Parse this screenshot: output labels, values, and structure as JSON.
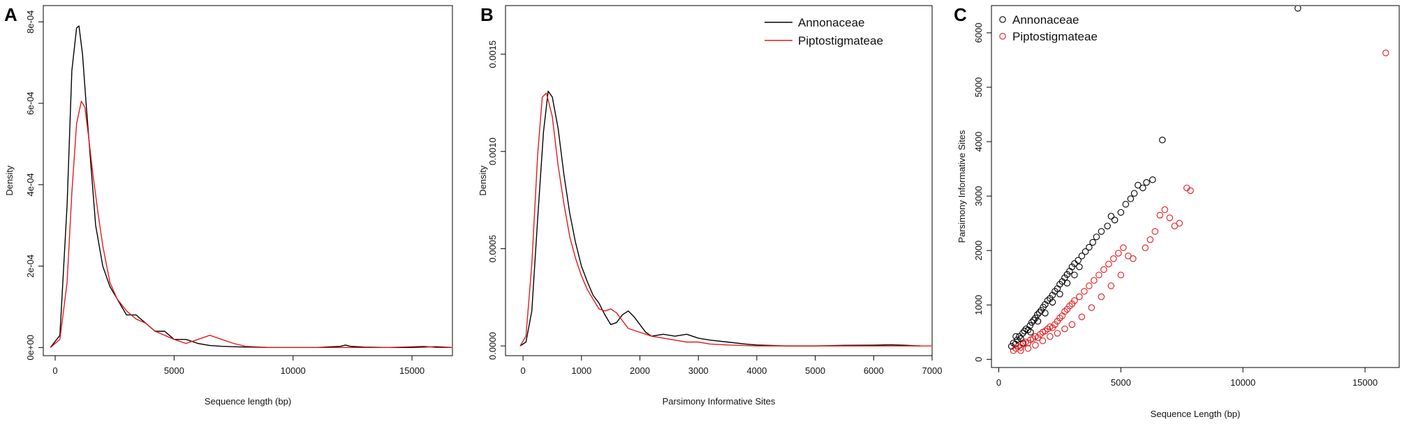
{
  "chart_data": [
    {
      "panel": "A",
      "type": "line",
      "xlabel": "Sequence length (bp)",
      "ylabel": "Density",
      "xlim": [
        -500,
        16700
      ],
      "ylim": [
        -2e-05,
        0.00084
      ],
      "x_ticks": [
        0,
        5000,
        10000,
        15000
      ],
      "y_ticks": [
        0,
        0.0002,
        0.0004,
        0.0006,
        0.0008
      ],
      "y_tick_labels": [
        "0e+00",
        "2e-04",
        "4e-04",
        "6e-04",
        "8e-04"
      ],
      "series": [
        {
          "color": "#000000",
          "x": [
            -200,
            200,
            500,
            700,
            900,
            1000,
            1150,
            1300,
            1500,
            1700,
            2000,
            2300,
            2600,
            3000,
            3400,
            3800,
            4200,
            4600,
            5000,
            5500,
            6000,
            6500,
            7000,
            7500,
            8000,
            9000,
            10000,
            11000,
            12000,
            12200,
            12400,
            13000,
            14000,
            15000,
            16000,
            16700
          ],
          "y": [
            0.0,
            3e-05,
            0.00035,
            0.00068,
            0.000785,
            0.00079,
            0.00072,
            0.0006,
            0.00045,
            0.0003,
            0.0002,
            0.00015,
            0.00012,
            8e-05,
            8e-05,
            6e-05,
            4e-05,
            4e-05,
            2e-05,
            2e-05,
            1e-05,
            5e-06,
            3e-06,
            2e-06,
            1e-06,
            0.0,
            0.0,
            0.0,
            3e-06,
            6e-06,
            3e-06,
            1e-06,
            0.0,
            0.0,
            2e-06,
            0.0
          ]
        },
        {
          "color": "#e31a1c",
          "x": [
            -200,
            200,
            500,
            700,
            900,
            1100,
            1250,
            1400,
            1600,
            1800,
            2000,
            2300,
            2600,
            3000,
            3400,
            3800,
            4200,
            4600,
            5000,
            5500,
            6000,
            6500,
            7000,
            7500,
            8000,
            9000,
            10000,
            12000,
            14000,
            15500,
            16000,
            16700
          ],
          "y": [
            0.0,
            2e-05,
            0.00016,
            0.00038,
            0.00055,
            0.000605,
            0.00059,
            0.00052,
            0.00042,
            0.00033,
            0.00025,
            0.00016,
            0.00012,
            9e-05,
            7e-05,
            6e-05,
            4e-05,
            3e-05,
            2e-05,
            1e-05,
            2e-05,
            3e-05,
            2e-05,
            1e-05,
            3e-06,
            0.0,
            0.0,
            0.0,
            0.0,
            3e-06,
            0.0,
            0.0
          ]
        }
      ]
    },
    {
      "panel": "B",
      "type": "line",
      "xlabel": "Parsimony Informative Sites",
      "ylabel": "Density",
      "xlim": [
        -300,
        7000
      ],
      "ylim": [
        -5e-05,
        0.00175
      ],
      "x_ticks": [
        0,
        1000,
        2000,
        3000,
        4000,
        5000,
        6000,
        7000
      ],
      "y_ticks": [
        0,
        0.0005,
        0.001,
        0.0015
      ],
      "y_tick_labels": [
        "0.0000",
        "0.0005",
        "0.0010",
        "0.0015"
      ],
      "legend": {
        "position": "top-right",
        "entries": [
          {
            "label": "Annonaceae",
            "color": "#000000"
          },
          {
            "label": "Piptostigmateae",
            "color": "#e31a1c"
          }
        ]
      },
      "series": [
        {
          "name": "Annonaceae",
          "color": "#000000",
          "x": [
            -50,
            50,
            150,
            250,
            350,
            430,
            500,
            600,
            700,
            800,
            900,
            1000,
            1100,
            1200,
            1300,
            1400,
            1500,
            1600,
            1700,
            1800,
            1900,
            2000,
            2100,
            2200,
            2400,
            2600,
            2800,
            3000,
            3200,
            3500,
            3800,
            4000,
            4500,
            5000,
            5500,
            6000,
            6300,
            6500,
            6800
          ],
          "y": [
            0.0,
            2e-05,
            0.00018,
            0.00065,
            0.0011,
            0.00131,
            0.00128,
            0.00112,
            0.00088,
            0.00068,
            0.00053,
            0.00041,
            0.00033,
            0.00026,
            0.00022,
            0.00016,
            0.00011,
            0.00012,
            0.00016,
            0.00018,
            0.00015,
            0.00011,
            7e-05,
            5e-05,
            6e-05,
            5e-05,
            6e-05,
            4e-05,
            3e-05,
            2e-05,
            1e-05,
            5e-06,
            0.0,
            0.0,
            3e-06,
            4e-06,
            6e-06,
            4e-06,
            0.0
          ]
        },
        {
          "name": "Piptostigmateae",
          "color": "#e31a1c",
          "x": [
            -50,
            50,
            150,
            250,
            330,
            400,
            500,
            600,
            700,
            800,
            900,
            1000,
            1100,
            1200,
            1300,
            1400,
            1500,
            1600,
            1700,
            1800,
            2000,
            2200,
            2400,
            2600,
            2800,
            3000,
            3200,
            3500,
            4000,
            4500,
            5000,
            6000,
            7000
          ],
          "y": [
            0.0,
            5e-05,
            0.00042,
            0.00098,
            0.00128,
            0.0013,
            0.00118,
            0.00093,
            0.00073,
            0.00056,
            0.00045,
            0.00036,
            0.00029,
            0.00024,
            0.00019,
            0.00018,
            0.00019,
            0.00017,
            0.00013,
            9e-05,
            7e-05,
            5e-05,
            4e-05,
            3e-05,
            2e-05,
            2e-05,
            1e-05,
            5e-06,
            0.0,
            0.0,
            0.0,
            0.0,
            0.0
          ]
        }
      ]
    },
    {
      "panel": "C",
      "type": "scatter",
      "xlabel": "Sequence Length (bp)",
      "ylabel": "Parsimony Informative Sites",
      "xlim": [
        -300,
        16400
      ],
      "ylim": [
        -150,
        6500
      ],
      "x_ticks": [
        0,
        5000,
        10000,
        15000
      ],
      "y_ticks": [
        0,
        1000,
        2000,
        3000,
        4000,
        5000,
        6000
      ],
      "legend": {
        "position": "top-left",
        "entries": [
          {
            "label": "Annonaceae",
            "color": "#000000"
          },
          {
            "label": "Piptostigmateae",
            "color": "#e31a1c"
          }
        ]
      },
      "series": [
        {
          "name": "Annonaceae",
          "color": "#000000",
          "points": [
            [
              520,
              240
            ],
            [
              600,
              300
            ],
            [
              680,
              280
            ],
            [
              760,
              360
            ],
            [
              840,
              420
            ],
            [
              900,
              380
            ],
            [
              980,
              480
            ],
            [
              1050,
              520
            ],
            [
              1120,
              560
            ],
            [
              1200,
              540
            ],
            [
              1280,
              620
            ],
            [
              1350,
              680
            ],
            [
              1430,
              720
            ],
            [
              1500,
              760
            ],
            [
              1580,
              820
            ],
            [
              1660,
              860
            ],
            [
              1740,
              900
            ],
            [
              1820,
              960
            ],
            [
              1900,
              1010
            ],
            [
              2000,
              1080
            ],
            [
              2100,
              1120
            ],
            [
              2200,
              1180
            ],
            [
              2300,
              1250
            ],
            [
              2400,
              1300
            ],
            [
              2500,
              1380
            ],
            [
              2600,
              1430
            ],
            [
              2700,
              1500
            ],
            [
              2800,
              1560
            ],
            [
              2900,
              1620
            ],
            [
              3000,
              1700
            ],
            [
              3100,
              1760
            ],
            [
              3250,
              1820
            ],
            [
              3400,
              1900
            ],
            [
              3550,
              1980
            ],
            [
              3700,
              2060
            ],
            [
              3850,
              2150
            ],
            [
              4000,
              2250
            ],
            [
              4200,
              2350
            ],
            [
              4450,
              2450
            ],
            [
              4600,
              2630
            ],
            [
              4750,
              2560
            ],
            [
              5000,
              2700
            ],
            [
              5200,
              2850
            ],
            [
              5400,
              2950
            ],
            [
              5550,
              3050
            ],
            [
              5700,
              3200
            ],
            [
              5900,
              3150
            ],
            [
              6050,
              3250
            ],
            [
              6300,
              3300
            ],
            [
              6700,
              4030
            ],
            [
              12250,
              6450
            ],
            [
              700,
              420
            ],
            [
              1000,
              300
            ],
            [
              1300,
              500
            ],
            [
              1600,
              700
            ],
            [
              1900,
              850
            ],
            [
              2200,
              1050
            ],
            [
              2500,
              1200
            ],
            [
              2800,
              1400
            ],
            [
              3100,
              1550
            ],
            [
              3300,
              1700
            ]
          ]
        },
        {
          "name": "Piptostigmateae",
          "color": "#e31a1c",
          "points": [
            [
              600,
              160
            ],
            [
              700,
              200
            ],
            [
              800,
              240
            ],
            [
              900,
              220
            ],
            [
              1000,
              280
            ],
            [
              1100,
              320
            ],
            [
              1200,
              300
            ],
            [
              1300,
              360
            ],
            [
              1400,
              380
            ],
            [
              1500,
              420
            ],
            [
              1600,
              400
            ],
            [
              1700,
              460
            ],
            [
              1800,
              500
            ],
            [
              1900,
              520
            ],
            [
              2000,
              560
            ],
            [
              2100,
              600
            ],
            [
              2200,
              580
            ],
            [
              2300,
              640
            ],
            [
              2400,
              700
            ],
            [
              2500,
              760
            ],
            [
              2600,
              800
            ],
            [
              2700,
              880
            ],
            [
              2800,
              920
            ],
            [
              2900,
              980
            ],
            [
              3000,
              1020
            ],
            [
              3100,
              1080
            ],
            [
              3300,
              1150
            ],
            [
              3500,
              1250
            ],
            [
              3700,
              1350
            ],
            [
              3900,
              1450
            ],
            [
              4100,
              1550
            ],
            [
              4300,
              1650
            ],
            [
              4500,
              1750
            ],
            [
              4700,
              1850
            ],
            [
              4900,
              1950
            ],
            [
              5100,
              2050
            ],
            [
              5300,
              1900
            ],
            [
              5500,
              1850
            ],
            [
              6000,
              2050
            ],
            [
              6200,
              2200
            ],
            [
              6400,
              2350
            ],
            [
              6600,
              2650
            ],
            [
              6800,
              2750
            ],
            [
              7000,
              2600
            ],
            [
              7200,
              2450
            ],
            [
              7400,
              2500
            ],
            [
              7700,
              3150
            ],
            [
              7850,
              3100
            ],
            [
              15850,
              5630
            ],
            [
              900,
              160
            ],
            [
              1200,
              200
            ],
            [
              1500,
              260
            ],
            [
              1800,
              340
            ],
            [
              2100,
              420
            ],
            [
              2400,
              480
            ],
            [
              2700,
              560
            ],
            [
              3000,
              640
            ],
            [
              3400,
              780
            ],
            [
              3800,
              950
            ],
            [
              4200,
              1150
            ],
            [
              4600,
              1350
            ],
            [
              5000,
              1550
            ]
          ]
        }
      ]
    }
  ],
  "figure": {
    "panel_letters": [
      "A",
      "B",
      "C"
    ]
  }
}
